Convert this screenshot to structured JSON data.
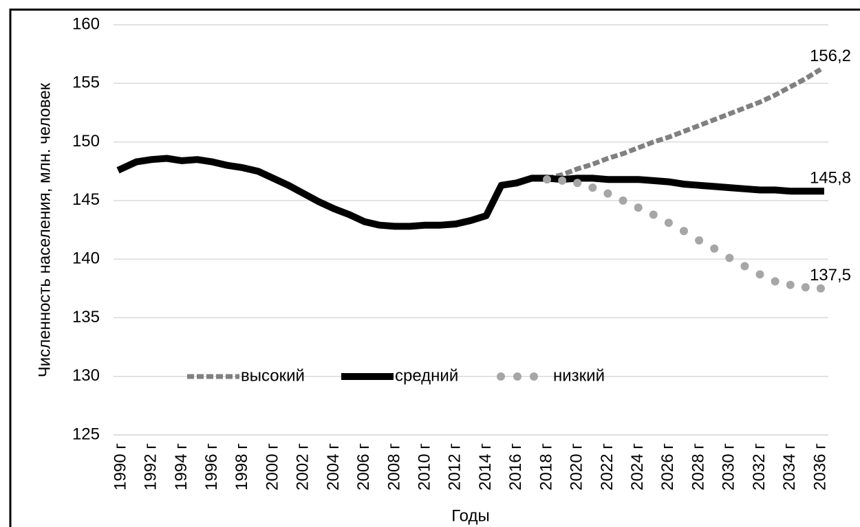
{
  "chart_data": {
    "type": "line",
    "y_label": "Численность населения, млн. человек",
    "x_label": "Годы",
    "categories": [
      "1990 г",
      null,
      "1992 г",
      null,
      "1994 г",
      null,
      "1996 г",
      null,
      "1998 г",
      null,
      "2000 г",
      null,
      "2002 г",
      null,
      "2004 г",
      null,
      "2006 г",
      null,
      "2008 г",
      null,
      "2010 г",
      null,
      "2012 г",
      null,
      "2014 г",
      null,
      "2016 г",
      null,
      "2018 г",
      null,
      "2020 г",
      null,
      "2022 г",
      null,
      "2024 г",
      null,
      "2026 г",
      null,
      "2028 г",
      null,
      "2030 г",
      null,
      "2032 г",
      null,
      "2034 г",
      null,
      "2036 г"
    ],
    "series": [
      {
        "name": "высокий",
        "color": "#808080",
        "style": "dashed",
        "values": [
          null,
          null,
          null,
          null,
          null,
          null,
          null,
          null,
          null,
          null,
          null,
          null,
          null,
          null,
          null,
          null,
          null,
          null,
          null,
          null,
          null,
          null,
          null,
          null,
          null,
          null,
          null,
          null,
          146.9,
          147.2,
          147.7,
          148.1,
          148.6,
          149.0,
          149.5,
          150.0,
          150.4,
          150.9,
          151.4,
          151.9,
          152.4,
          152.9,
          153.4,
          154.0,
          154.7,
          155.4,
          156.2
        ],
        "value_labels": [
          null,
          null,
          null,
          null,
          null,
          null,
          null,
          null,
          null,
          null,
          null,
          null,
          null,
          null,
          null,
          null,
          null,
          null,
          null,
          null,
          null,
          null,
          null,
          null,
          null,
          null,
          null,
          null,
          null,
          null,
          null,
          null,
          null,
          null,
          null,
          null,
          null,
          null,
          null,
          null,
          null,
          null,
          null,
          null,
          null,
          null,
          "156,2"
        ]
      },
      {
        "name": "средний",
        "color": "#000000",
        "style": "solid",
        "values": [
          147.7,
          148.3,
          148.5,
          148.6,
          148.4,
          148.5,
          148.3,
          148.0,
          147.8,
          147.5,
          146.9,
          146.3,
          145.6,
          144.9,
          144.3,
          143.8,
          143.2,
          142.9,
          142.8,
          142.8,
          142.9,
          142.9,
          143.0,
          143.3,
          143.7,
          146.3,
          146.5,
          146.9,
          146.9,
          146.8,
          146.9,
          146.9,
          146.8,
          146.8,
          146.8,
          146.7,
          146.6,
          146.4,
          146.3,
          146.2,
          146.1,
          146.0,
          145.9,
          145.9,
          145.8,
          145.8,
          145.8
        ],
        "value_labels": [
          null,
          null,
          null,
          null,
          null,
          null,
          null,
          null,
          null,
          null,
          null,
          null,
          null,
          null,
          null,
          null,
          null,
          null,
          null,
          null,
          null,
          null,
          null,
          null,
          null,
          null,
          null,
          null,
          null,
          null,
          null,
          null,
          null,
          null,
          null,
          null,
          null,
          null,
          null,
          null,
          null,
          null,
          null,
          null,
          null,
          null,
          "145,8"
        ]
      },
      {
        "name": "низкий",
        "color": "#a6a6a6",
        "style": "dots",
        "values": [
          null,
          null,
          null,
          null,
          null,
          null,
          null,
          null,
          null,
          null,
          null,
          null,
          null,
          null,
          null,
          null,
          null,
          null,
          null,
          null,
          null,
          null,
          null,
          null,
          null,
          null,
          null,
          null,
          146.8,
          146.7,
          146.5,
          146.1,
          145.6,
          145.0,
          144.4,
          143.8,
          143.1,
          142.4,
          141.6,
          140.9,
          140.1,
          139.4,
          138.7,
          138.1,
          137.8,
          137.6,
          137.5
        ],
        "value_labels": [
          null,
          null,
          null,
          null,
          null,
          null,
          null,
          null,
          null,
          null,
          null,
          null,
          null,
          null,
          null,
          null,
          null,
          null,
          null,
          null,
          null,
          null,
          null,
          null,
          null,
          null,
          null,
          null,
          null,
          null,
          null,
          null,
          null,
          null,
          null,
          null,
          null,
          null,
          null,
          null,
          null,
          null,
          null,
          null,
          null,
          null,
          "137,5"
        ]
      }
    ],
    "ylim": [
      125,
      160
    ],
    "yticks": [
      125,
      130,
      135,
      140,
      145,
      150,
      155,
      160
    ],
    "grid": true,
    "legend": "center"
  }
}
